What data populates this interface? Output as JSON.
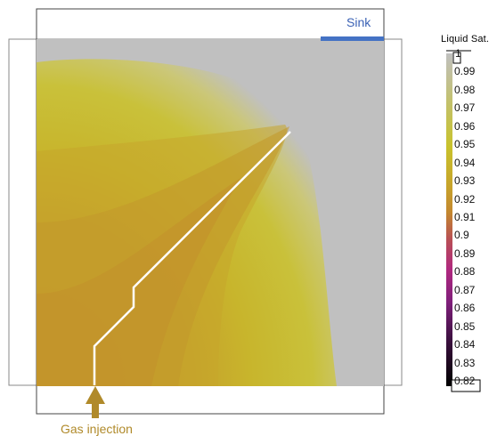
{
  "annotations": {
    "sink": "Sink",
    "gas_injection": "Gas injection"
  },
  "legend": {
    "title": "Liquid Sat.",
    "ticks": [
      "1",
      "0.99",
      "0.98",
      "0.97",
      "0.96",
      "0.95",
      "0.94",
      "0.93",
      "0.92",
      "0.91",
      "0.9",
      "0.89",
      "0.88",
      "0.87",
      "0.86",
      "0.85",
      "0.84",
      "0.83",
      "0.82"
    ],
    "top_value": "1",
    "bottom_value": "0.82"
  },
  "colors": {
    "background_field": "#c0c0c0",
    "high_saturation": "#c6c1a0",
    "mid_saturation": "#c8c22c",
    "low_saturation": "#c38f2b",
    "sink_bar": "#4472c4",
    "gas_arrow": "#b08a2a",
    "fracture_path": "#ffffff"
  }
}
